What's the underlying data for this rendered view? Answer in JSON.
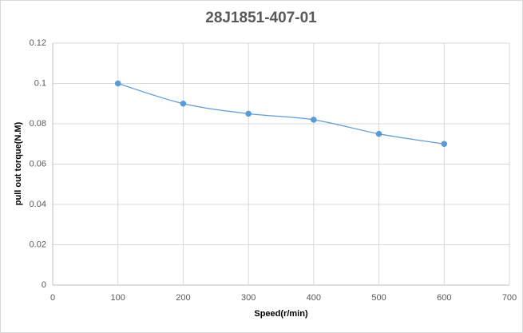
{
  "chart_data": {
    "type": "scatter",
    "title": "28J1851-407-01",
    "x_label": "Speed(r/min)",
    "y_label": "pull out torque(N.M)",
    "x": [
      100,
      200,
      300,
      400,
      500,
      600
    ],
    "series": [
      {
        "name": "pull out torque",
        "color": "#5b9bd5",
        "values": [
          0.1,
          0.09,
          0.085,
          0.082,
          0.075,
          0.07
        ]
      }
    ],
    "xlim": [
      0,
      700
    ],
    "xticks": [
      0,
      100,
      200,
      300,
      400,
      500,
      600,
      700
    ],
    "ylim": [
      0,
      0.12
    ],
    "yticks": [
      0,
      0.02,
      0.04,
      0.06,
      0.08,
      0.1,
      0.12
    ],
    "grid": true,
    "smooth": true
  }
}
